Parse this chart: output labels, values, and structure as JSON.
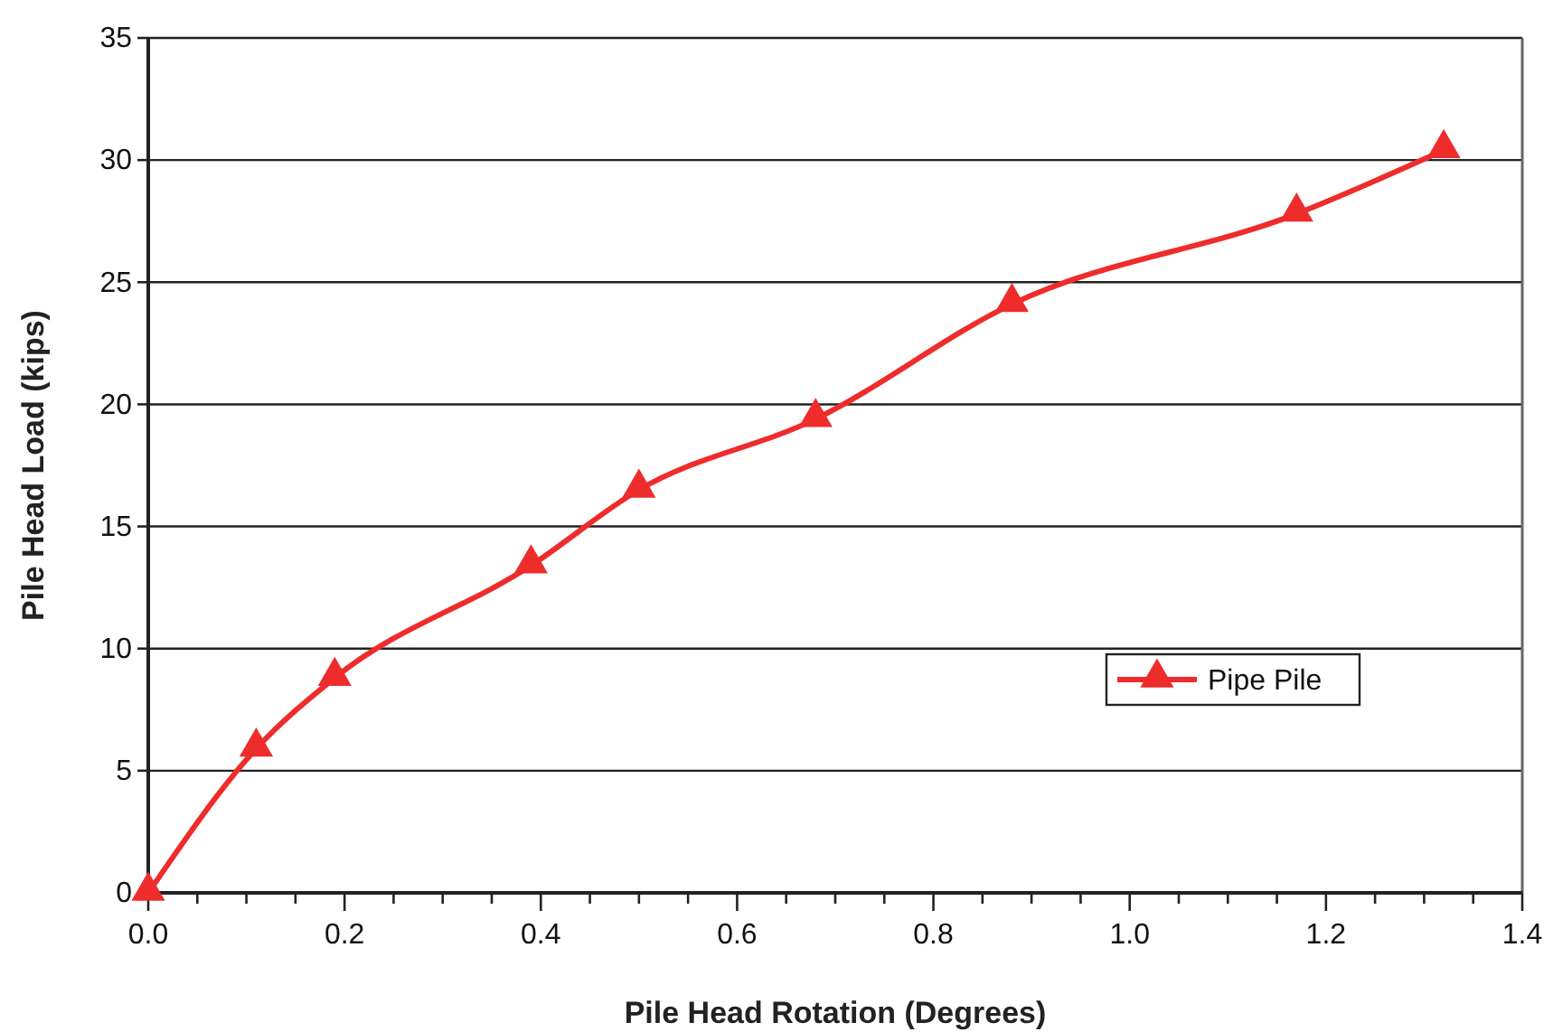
{
  "chart_data": {
    "type": "line",
    "xlabel": "Pile Head Rotation (Degrees)",
    "ylabel": "Pile Head Load (kips)",
    "x": [
      0,
      0.11,
      0.19,
      0.39,
      0.5,
      0.68,
      0.88,
      1.17,
      1.32
    ],
    "series": [
      {
        "name": "Pipe Pile",
        "color": "#ee2c2c",
        "values": [
          0,
          5.9,
          8.8,
          13.4,
          16.5,
          19.4,
          24.1,
          27.8,
          30.4
        ]
      }
    ],
    "xlim": [
      0,
      1.4
    ],
    "xticks": [
      {
        "value": 0,
        "label": "0.0"
      },
      {
        "value": 0.05,
        "label": null
      },
      {
        "value": 0.1,
        "label": null
      },
      {
        "value": 0.15,
        "label": null
      },
      {
        "value": 0.2,
        "label": "0.2"
      },
      {
        "value": 0.25,
        "label": null
      },
      {
        "value": 0.3,
        "label": null
      },
      {
        "value": 0.35,
        "label": null
      },
      {
        "value": 0.4,
        "label": "0.4"
      },
      {
        "value": 0.45,
        "label": null
      },
      {
        "value": 0.5,
        "label": null
      },
      {
        "value": 0.55,
        "label": null
      },
      {
        "value": 0.6,
        "label": "0.6"
      },
      {
        "value": 0.65,
        "label": null
      },
      {
        "value": 0.7,
        "label": null
      },
      {
        "value": 0.75,
        "label": null
      },
      {
        "value": 0.8,
        "label": "0.8"
      },
      {
        "value": 0.85,
        "label": null
      },
      {
        "value": 0.9,
        "label": null
      },
      {
        "value": 0.95,
        "label": null
      },
      {
        "value": 1,
        "label": "1.0"
      },
      {
        "value": 1.05,
        "label": null
      },
      {
        "value": 1.1,
        "label": null
      },
      {
        "value": 1.15,
        "label": null
      },
      {
        "value": 1.2,
        "label": "1.2"
      },
      {
        "value": 1.25,
        "label": null
      },
      {
        "value": 1.3,
        "label": null
      },
      {
        "value": 1.35,
        "label": null
      },
      {
        "value": 1.4,
        "label": "1.4"
      }
    ],
    "ylim": [
      0,
      35
    ],
    "yticks": [
      0,
      5,
      10,
      15,
      20,
      25,
      30,
      35
    ],
    "grid": "y",
    "legend": "right",
    "marker": "triangle",
    "line_style": "solid"
  }
}
